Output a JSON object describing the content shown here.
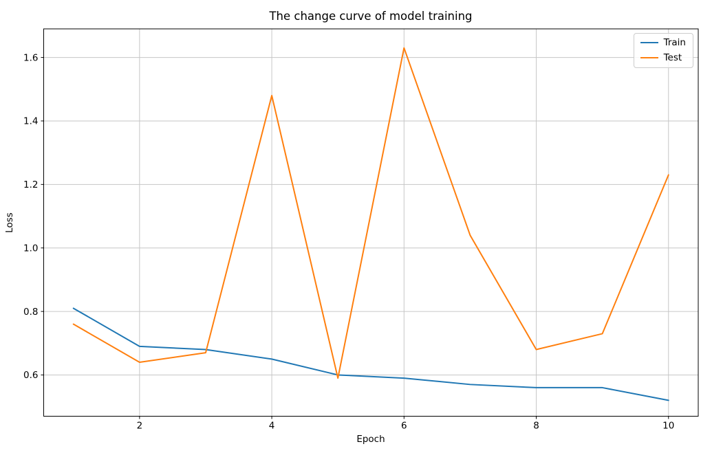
{
  "chart_data": {
    "type": "line",
    "title": "The change curve of model training",
    "xlabel": "Epoch",
    "ylabel": "Loss",
    "x": [
      1,
      2,
      3,
      4,
      5,
      6,
      7,
      8,
      9,
      10
    ],
    "series": [
      {
        "name": "Train",
        "color": "#1f77b4",
        "values": [
          0.81,
          0.69,
          0.68,
          0.65,
          0.6,
          0.59,
          0.57,
          0.56,
          0.56,
          0.52
        ]
      },
      {
        "name": "Test",
        "color": "#ff7f0e",
        "values": [
          0.76,
          0.64,
          0.67,
          1.48,
          0.59,
          1.63,
          1.04,
          0.68,
          0.73,
          1.23
        ]
      }
    ],
    "xticks": [
      2,
      4,
      6,
      8,
      10
    ],
    "xtick_labels": [
      "2",
      "4",
      "6",
      "8",
      "10"
    ],
    "yticks": [
      0.6,
      0.8,
      1.0,
      1.2,
      1.4,
      1.6
    ],
    "ytick_labels": [
      "0.6",
      "0.8",
      "1.0",
      "1.2",
      "1.4",
      "1.6"
    ],
    "xlim": [
      0.55,
      10.45
    ],
    "ylim": [
      0.47,
      1.69
    ],
    "grid": true,
    "grid_color": "#c6c6c6",
    "axis_color": "#000000",
    "background_color": "#ffffff",
    "legend_position": "upper right"
  }
}
